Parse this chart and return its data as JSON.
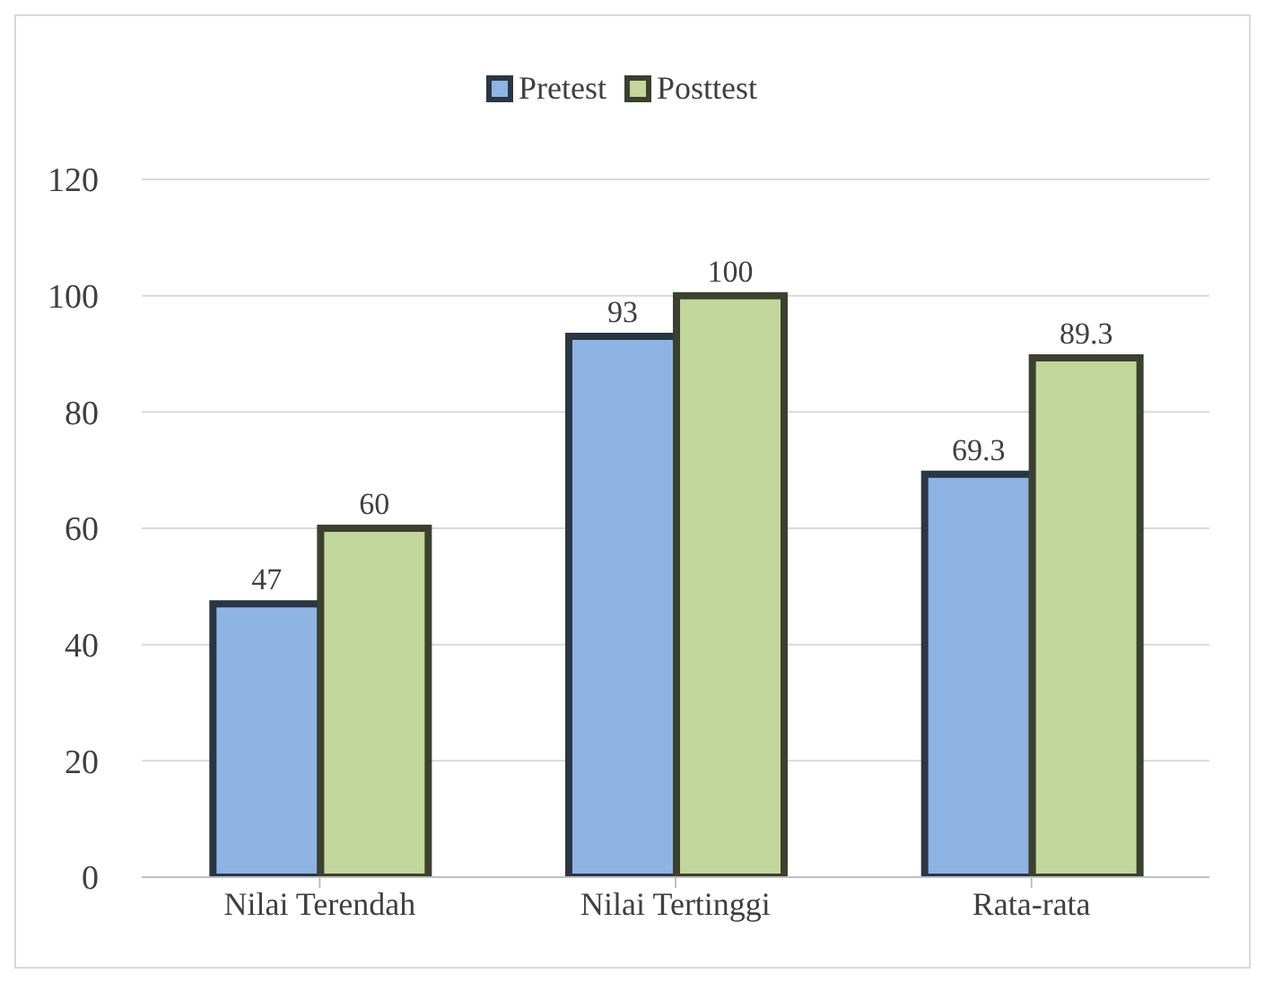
{
  "chart_data": {
    "type": "bar",
    "categories": [
      "Nilai Terendah",
      "Nilai Tertinggi",
      "Rata-rata"
    ],
    "series": [
      {
        "name": "Pretest",
        "color": "#8eb4e3",
        "values": [
          47,
          93,
          69.3
        ]
      },
      {
        "name": "Posttest",
        "color": "#c3d69b",
        "values": [
          60,
          100,
          89.3
        ]
      }
    ],
    "ylim": [
      0,
      120
    ],
    "yticks": [
      0,
      20,
      40,
      60,
      80,
      100,
      120
    ],
    "grid": "y",
    "legend": "top",
    "data_labels": true
  }
}
